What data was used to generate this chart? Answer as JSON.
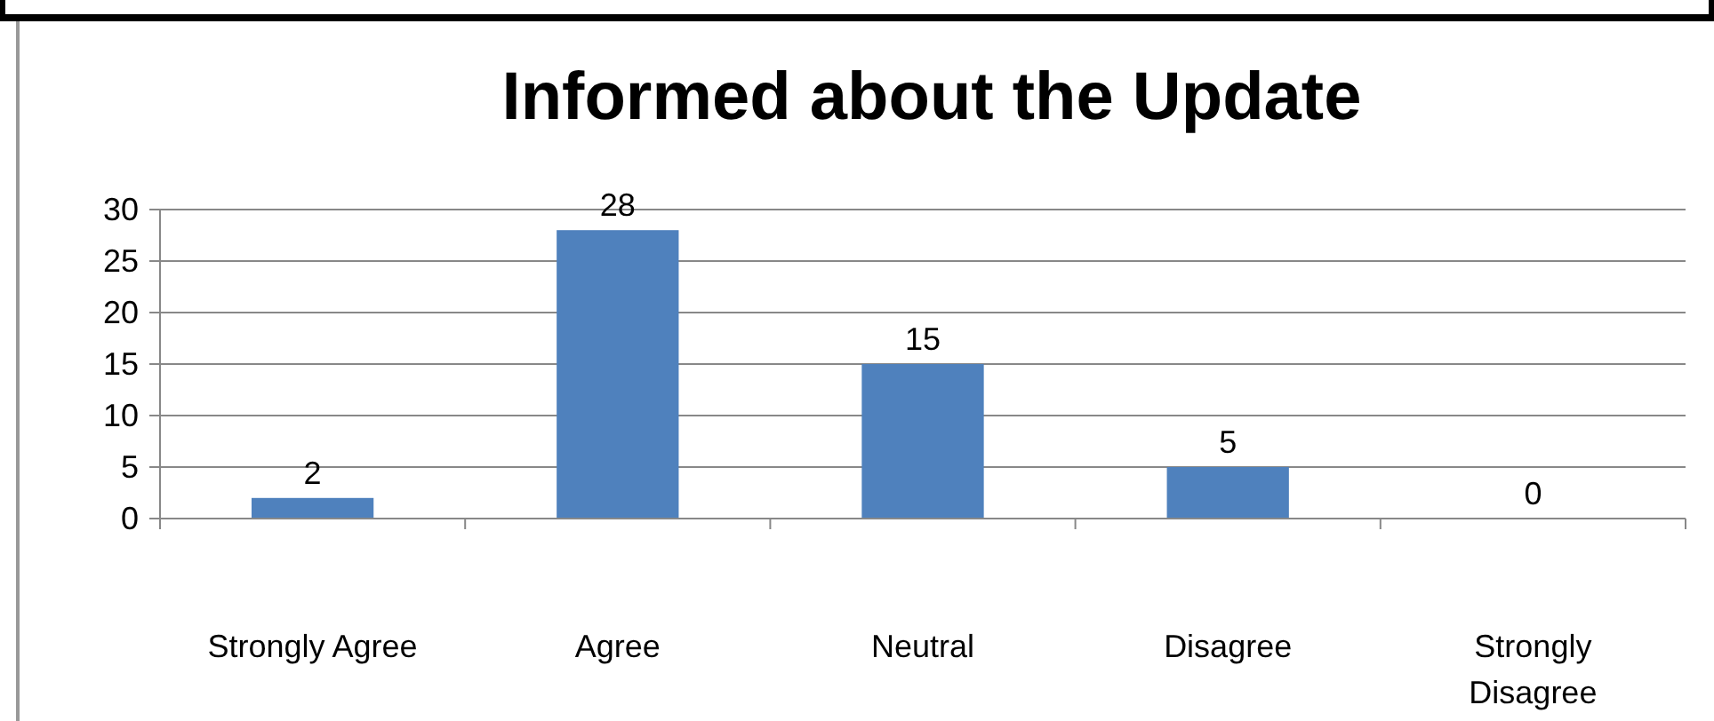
{
  "chart_data": {
    "type": "bar",
    "title": "Informed about the Update",
    "categories": [
      "Strongly Agree",
      "Agree",
      "Neutral",
      "Disagree",
      "Strongly Disagree"
    ],
    "values": [
      2,
      28,
      15,
      5,
      0
    ],
    "color": "#4f81bd",
    "ylim": [
      0,
      30
    ],
    "yticks": [
      0,
      5,
      10,
      15,
      20,
      25,
      30
    ],
    "grid": "y",
    "data_labels": true
  }
}
